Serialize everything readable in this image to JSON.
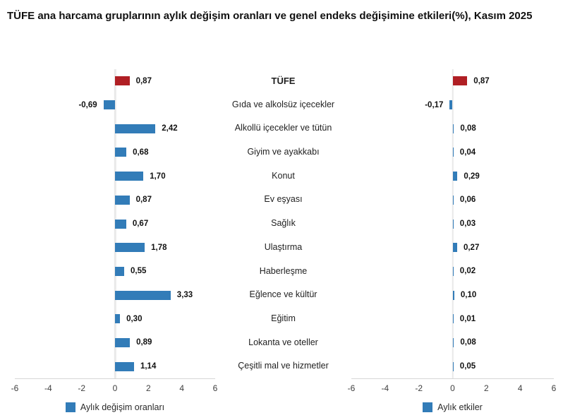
{
  "title": "TÜFE ana harcama gruplarının aylık değişim oranları ve genel endeks değişimine etkileri(%), Kasım 2025",
  "categories": [
    "TÜFE",
    "Gıda ve alkolsüz içecekler",
    "Alkollü içecekler ve tütün",
    "Giyim ve ayakkabı",
    "Konut",
    "Ev eşyası",
    "Sağlık",
    "Ulaştırma",
    "Haberleşme",
    "Eğlence ve kültür",
    "Eğitim",
    "Lokanta ve oteller",
    "Çeşitli mal ve hizmetler"
  ],
  "colors": {
    "bar": "#327cb8",
    "highlight_bar": "#b01f24",
    "zero_line": "#e9e9e9",
    "axis_line": "#d6d6d6",
    "tick_text": "#3f3f3f",
    "label_text": "#1f1f1f",
    "value_text": "#111111"
  },
  "chart_data": [
    {
      "type": "bar",
      "orientation": "horizontal",
      "legend": "Aylık değişim oranları",
      "xlim": [
        -6,
        6
      ],
      "xticks": [
        -6,
        -4,
        -2,
        0,
        2,
        4,
        6
      ],
      "grid": false,
      "legend_position": "bottom",
      "highlight_index": 0,
      "values": [
        0.87,
        -0.69,
        2.42,
        0.68,
        1.7,
        0.87,
        0.67,
        1.78,
        0.55,
        3.33,
        0.3,
        0.89,
        1.14
      ],
      "value_labels": [
        "0,87",
        "-0,69",
        "2,42",
        "0,68",
        "1,70",
        "0,87",
        "0,67",
        "1,78",
        "0,55",
        "3,33",
        "0,30",
        "0,89",
        "1,14"
      ]
    },
    {
      "type": "bar",
      "orientation": "horizontal",
      "legend": "Aylık etkiler",
      "xlim": [
        -6,
        6
      ],
      "xticks": [
        -6,
        -4,
        -2,
        0,
        2,
        4,
        6
      ],
      "grid": false,
      "legend_position": "bottom",
      "highlight_index": 0,
      "values": [
        0.87,
        -0.17,
        0.08,
        0.04,
        0.29,
        0.06,
        0.03,
        0.27,
        0.02,
        0.1,
        0.01,
        0.08,
        0.05
      ],
      "value_labels": [
        "0,87",
        "-0,17",
        "0,08",
        "0,04",
        "0,29",
        "0,06",
        "0,03",
        "0,27",
        "0,02",
        "0,10",
        "0,01",
        "0,08",
        "0,05"
      ]
    }
  ]
}
